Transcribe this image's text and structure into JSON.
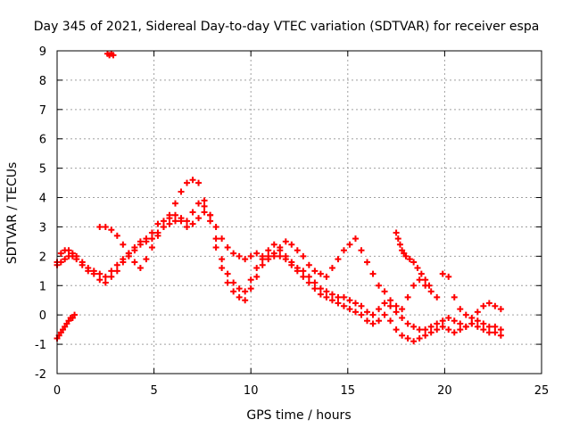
{
  "chart_data": {
    "type": "scatter",
    "title": "Day 345 of 2021, Sidereal Day-to-day VTEC variation (SDTVAR) for receiver espa",
    "xlabel": "GPS time / hours",
    "ylabel": "SDTVAR / TECUs",
    "xlim": [
      0,
      25
    ],
    "ylim": [
      -2,
      9
    ],
    "xticks": [
      0,
      5,
      10,
      15,
      20,
      25
    ],
    "yticks": [
      -2,
      -1,
      0,
      1,
      2,
      3,
      4,
      5,
      6,
      7,
      8,
      9
    ],
    "grid": true,
    "marker": "+",
    "color": "#ff0000",
    "series": [
      {
        "x": [
          0.0,
          0.2,
          0.4,
          0.6,
          0.8,
          1.0,
          1.3,
          1.6,
          1.9,
          2.2,
          2.5,
          2.8,
          3.1,
          3.4,
          3.7,
          4.0,
          4.3,
          4.6,
          4.9,
          5.2,
          5.5,
          5.8,
          6.1,
          6.4,
          6.7,
          7.0,
          7.3,
          7.6,
          7.9,
          8.2,
          8.5,
          8.8,
          9.1,
          9.4,
          9.7,
          10.0,
          10.3,
          10.6,
          10.9,
          11.2,
          11.5,
          11.8,
          12.1,
          12.4,
          12.7,
          13.0,
          13.3,
          13.6,
          13.9,
          14.2,
          14.5,
          14.8,
          15.1,
          15.4,
          15.7,
          16.0,
          16.3,
          16.6,
          16.9,
          17.2,
          17.5,
          17.8,
          18.1,
          18.4,
          18.7,
          19.0,
          19.3,
          19.6,
          19.9,
          20.2,
          20.5,
          20.8,
          21.1,
          21.4,
          21.7,
          22.0,
          22.3,
          22.6,
          22.9
        ],
        "y": [
          1.8,
          2.1,
          2.2,
          2.2,
          2.1,
          2.0,
          1.8,
          1.6,
          1.5,
          1.4,
          1.3,
          1.5,
          1.7,
          1.9,
          2.1,
          2.3,
          2.5,
          2.6,
          2.8,
          3.1,
          3.2,
          3.3,
          3.4,
          3.2,
          3.0,
          3.5,
          3.8,
          3.7,
          3.4,
          2.6,
          1.9,
          1.4,
          1.1,
          0.9,
          0.8,
          1.2,
          1.6,
          1.9,
          2.2,
          2.4,
          2.2,
          2.0,
          1.8,
          1.6,
          1.5,
          1.3,
          1.1,
          0.9,
          0.8,
          0.7,
          0.6,
          0.6,
          0.5,
          0.4,
          0.3,
          0.1,
          0.0,
          0.2,
          0.4,
          0.3,
          0.1,
          -0.1,
          -0.3,
          -0.4,
          -0.5,
          -0.5,
          -0.4,
          -0.3,
          -0.2,
          -0.1,
          -0.2,
          -0.3,
          -0.4,
          -0.3,
          -0.2,
          -0.3,
          -0.4,
          -0.4,
          -0.5
        ]
      },
      {
        "x": [
          0.0,
          0.2,
          0.4,
          0.6,
          0.8,
          1.0,
          1.3,
          1.6,
          1.9,
          2.2,
          2.5,
          2.8,
          3.1,
          3.4,
          3.7,
          4.0,
          4.3,
          4.6,
          4.9,
          5.2,
          5.5,
          5.8,
          6.1,
          6.4,
          6.7,
          7.0,
          7.3,
          7.6,
          7.9,
          8.2,
          8.5,
          8.8,
          9.1,
          9.4,
          9.7,
          10.0,
          10.3,
          10.6,
          10.9,
          11.2,
          11.5,
          11.8,
          12.1,
          12.4,
          12.7,
          13.0,
          13.3,
          13.6,
          13.9,
          14.2,
          14.5,
          14.8,
          15.1,
          15.4,
          15.7,
          16.0,
          16.3,
          16.6,
          16.9,
          17.2,
          17.5,
          17.8,
          18.1,
          18.4,
          18.7,
          19.0,
          19.3,
          19.6,
          19.9,
          20.2,
          20.5,
          20.8,
          21.1,
          21.4,
          21.7,
          22.0,
          22.3,
          22.6,
          22.9
        ],
        "y": [
          1.7,
          1.8,
          1.9,
          2.0,
          2.0,
          1.9,
          1.7,
          1.5,
          1.4,
          1.2,
          1.1,
          1.3,
          1.5,
          1.8,
          2.0,
          2.2,
          2.4,
          2.5,
          2.6,
          2.8,
          3.0,
          3.1,
          3.2,
          3.3,
          3.2,
          3.1,
          3.3,
          3.5,
          3.2,
          2.3,
          1.6,
          1.1,
          0.8,
          0.6,
          0.5,
          0.9,
          1.3,
          1.7,
          2.0,
          2.1,
          2.0,
          1.9,
          1.7,
          1.5,
          1.3,
          1.1,
          0.9,
          0.7,
          0.6,
          0.5,
          0.4,
          0.3,
          0.2,
          0.1,
          0.0,
          -0.2,
          -0.3,
          -0.2,
          0.0,
          -0.2,
          -0.5,
          -0.7,
          -0.8,
          -0.9,
          -0.8,
          -0.7,
          -0.6,
          -0.5,
          -0.4,
          -0.5,
          -0.6,
          -0.5,
          -0.4,
          -0.3,
          -0.4,
          -0.5,
          -0.6,
          -0.6,
          -0.7
        ]
      },
      {
        "x": [
          2.2,
          2.5,
          2.8,
          3.1,
          3.4,
          3.7,
          4.0,
          4.3,
          4.6,
          4.9,
          5.2,
          5.5,
          5.8,
          6.1,
          6.4,
          6.7,
          7.0,
          7.3,
          7.6,
          7.9,
          8.2,
          8.5,
          8.8,
          9.1,
          9.4,
          9.7,
          10.0,
          10.3,
          10.6,
          10.9,
          11.2,
          11.5,
          11.8,
          12.1,
          12.4,
          12.7,
          13.0,
          13.3,
          13.6,
          13.9,
          14.2,
          14.5,
          14.8,
          15.1,
          15.4,
          15.7,
          16.0,
          16.3,
          16.6,
          16.9,
          17.2,
          17.5,
          17.8,
          18.1,
          18.4,
          18.7,
          19.0,
          19.3,
          19.6,
          19.9,
          20.2,
          20.5,
          20.8,
          21.1,
          21.4,
          21.7,
          22.0,
          22.3,
          22.6,
          22.9
        ],
        "y": [
          3.0,
          3.0,
          2.9,
          2.7,
          2.4,
          2.1,
          1.8,
          1.6,
          1.9,
          2.3,
          2.7,
          3.0,
          3.4,
          3.8,
          4.2,
          4.5,
          4.6,
          4.5,
          3.9,
          3.4,
          3.0,
          2.6,
          2.3,
          2.1,
          2.0,
          1.9,
          2.0,
          2.1,
          2.0,
          1.9,
          2.0,
          2.3,
          2.5,
          2.4,
          2.2,
          2.0,
          1.7,
          1.5,
          1.4,
          1.3,
          1.6,
          1.9,
          2.2,
          2.4,
          2.6,
          2.2,
          1.8,
          1.4,
          1.0,
          0.8,
          0.5,
          0.3,
          0.2,
          0.6,
          1.0,
          1.2,
          1.0,
          0.8,
          0.6,
          1.4,
          1.3,
          0.6,
          0.2,
          0.0,
          -0.1,
          0.1,
          0.3,
          0.4,
          0.3,
          0.2
        ]
      },
      {
        "x": [
          17.5,
          17.6,
          17.7,
          17.8,
          17.9,
          18.0,
          18.2,
          18.4,
          18.6,
          18.8,
          19.0,
          19.2
        ],
        "y": [
          2.8,
          2.6,
          2.4,
          2.2,
          2.1,
          2.0,
          1.9,
          1.8,
          1.6,
          1.4,
          1.2,
          1.0
        ]
      },
      {
        "x": [
          0.0,
          0.1,
          0.2,
          0.3,
          0.4,
          0.5,
          0.6,
          0.7,
          0.8,
          0.9
        ],
        "y": [
          -0.8,
          -0.7,
          -0.6,
          -0.5,
          -0.4,
          -0.3,
          -0.2,
          -0.1,
          -0.1,
          0.0
        ]
      },
      {
        "x": [
          2.6,
          2.7,
          2.8,
          2.9
        ],
        "y": [
          8.9,
          8.85,
          8.9,
          8.85
        ]
      }
    ]
  }
}
